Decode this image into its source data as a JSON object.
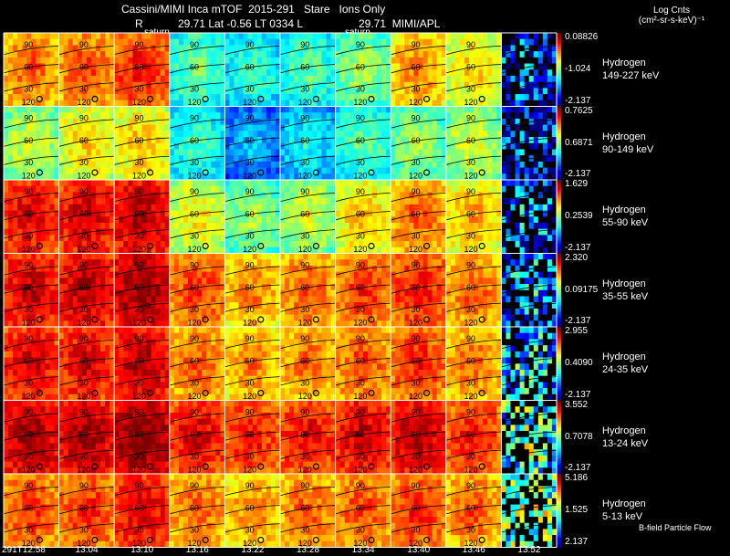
{
  "header": {
    "line1": "Cassini/MIMI Inca mTOF  2015-291   Stare   Ions Only",
    "line2_r": "R",
    "line2_mid": "29.71 Lat -0.56 LT 0334 L",
    "line2_right": "29.71  MIMI/APL",
    "saturn_left": "saturn",
    "saturn_right": "saturn"
  },
  "legend": {
    "title": "Log Cnts",
    "units": "(cm²-sr-s-keV)⁻¹"
  },
  "footer": "B-field  Particle Flow",
  "chart_data": {
    "type": "heatmap",
    "times": [
      "291T12:58",
      "13:04",
      "13:10",
      "13:16",
      "13:22",
      "13:28",
      "13:34",
      "13:40",
      "13:46",
      "13:52"
    ],
    "channels": [
      {
        "species": "Hydrogen",
        "energy": "149-227 keV",
        "cmax": "0.08826",
        "cmid": "-1.024",
        "cmin": "-2.137",
        "levels": [
          0.7,
          0.72,
          0.78,
          0.4,
          0.35,
          0.38,
          0.45,
          0.66,
          0.58,
          0.12
        ]
      },
      {
        "species": "Hydrogen",
        "energy": "90-149 keV",
        "cmax": "0.7625",
        "cmid": "0.6871",
        "cmin": "-2.137",
        "levels": [
          0.5,
          0.58,
          0.6,
          0.35,
          0.22,
          0.3,
          0.38,
          0.45,
          0.5,
          0.1
        ]
      },
      {
        "species": "Hydrogen",
        "energy": "55-90 keV",
        "cmax": "1.629",
        "cmid": "0.2539",
        "cmin": "-2.137",
        "levels": [
          0.82,
          0.84,
          0.86,
          0.55,
          0.45,
          0.5,
          0.6,
          0.7,
          0.62,
          0.15
        ]
      },
      {
        "species": "Hydrogen",
        "energy": "35-55 keV",
        "cmax": "2.320",
        "cmid": "0.09175",
        "cmin": "-2.137",
        "levels": [
          0.84,
          0.86,
          0.9,
          0.74,
          0.66,
          0.7,
          0.74,
          0.78,
          0.7,
          0.2
        ]
      },
      {
        "species": "Hydrogen",
        "energy": "24-35 keV",
        "cmax": "2.955",
        "cmid": "0.4090",
        "cmin": "-2.137",
        "levels": [
          0.82,
          0.82,
          0.86,
          0.7,
          0.66,
          0.68,
          0.72,
          0.76,
          0.68,
          0.25
        ]
      },
      {
        "species": "Hydrogen",
        "energy": "13-24 keV",
        "cmax": "3.552",
        "cmid": "0.7078",
        "cmin": "-2.137",
        "levels": [
          0.88,
          0.88,
          0.92,
          0.82,
          0.78,
          0.8,
          0.84,
          0.86,
          0.78,
          0.4
        ]
      },
      {
        "species": "Hydrogen",
        "energy": "5-13 keV",
        "cmax": "5.186",
        "cmid": "1.525",
        "cmin": "2.137",
        "levels": [
          0.74,
          0.76,
          0.82,
          0.7,
          0.66,
          0.7,
          0.72,
          0.76,
          0.7,
          0.45
        ]
      }
    ],
    "panel_ticks": [
      "90",
      "60",
      "30",
      "120"
    ]
  }
}
